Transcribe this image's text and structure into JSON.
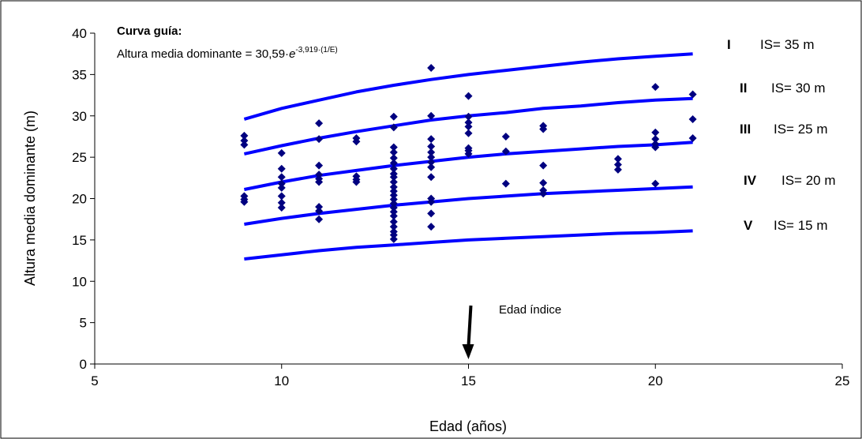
{
  "chart_data": {
    "type": "scatter",
    "xlabel": "Edad (años)",
    "ylabel": "Altura media dominante (m)",
    "xlim": [
      5,
      25
    ],
    "ylim": [
      0,
      40
    ],
    "x_ticks": [
      "5",
      "10",
      "15",
      "20",
      "25"
    ],
    "y_ticks": [
      "0",
      "5",
      "10",
      "15",
      "20",
      "25",
      "30",
      "35",
      "40"
    ],
    "guide_title": "Curva guía:",
    "guide_formula_base": "Altura media dominante = 30,59·",
    "guide_formula_e": "e",
    "guide_formula_exp": "-3,919·(1/E)",
    "index_age_label": "Edad índice",
    "index_age": 15,
    "grid": false,
    "point_color": "#000080",
    "curve_color": "#0000ff",
    "site_classes": [
      {
        "roman": "I",
        "label": "IS= 35 m",
        "x": [
          9,
          10,
          11,
          12,
          13,
          14,
          15,
          16,
          17,
          18,
          19,
          20,
          21
        ],
        "y": [
          29.6,
          30.9,
          31.9,
          32.9,
          33.7,
          34.4,
          35.0,
          35.5,
          36.0,
          36.5,
          36.9,
          37.2,
          37.5
        ]
      },
      {
        "roman": "II",
        "label": "IS= 30 m",
        "x": [
          9,
          10,
          11,
          12,
          13,
          14,
          15,
          16,
          17,
          18,
          19,
          20,
          21
        ],
        "y": [
          25.4,
          26.4,
          27.3,
          28.1,
          28.8,
          29.5,
          30.0,
          30.4,
          30.9,
          31.2,
          31.6,
          31.9,
          32.1
        ]
      },
      {
        "roman": "III",
        "label": "IS= 25 m",
        "x": [
          9,
          10,
          11,
          12,
          13,
          14,
          15,
          16,
          17,
          18,
          19,
          20,
          21
        ],
        "y": [
          21.1,
          22.0,
          22.8,
          23.4,
          24.0,
          24.5,
          25.0,
          25.4,
          25.7,
          26.0,
          26.3,
          26.5,
          26.8
        ]
      },
      {
        "roman": "IV",
        "label": "IS= 20 m",
        "x": [
          9,
          10,
          11,
          12,
          13,
          14,
          15,
          16,
          17,
          18,
          19,
          20,
          21
        ],
        "y": [
          16.9,
          17.6,
          18.2,
          18.7,
          19.2,
          19.6,
          20.0,
          20.3,
          20.6,
          20.8,
          21.0,
          21.2,
          21.4
        ]
      },
      {
        "roman": "V",
        "label": "IS= 15 m",
        "x": [
          9,
          10,
          11,
          12,
          13,
          14,
          15,
          16,
          17,
          18,
          19,
          20,
          21
        ],
        "y": [
          12.7,
          13.2,
          13.7,
          14.1,
          14.4,
          14.7,
          15.0,
          15.2,
          15.4,
          15.6,
          15.8,
          15.9,
          16.1
        ]
      }
    ],
    "points": [
      [
        9,
        27.6
      ],
      [
        9,
        27.0
      ],
      [
        9,
        26.5
      ],
      [
        9,
        20.3
      ],
      [
        9,
        19.9
      ],
      [
        9,
        19.6
      ],
      [
        10,
        25.5
      ],
      [
        10,
        23.6
      ],
      [
        10,
        22.6
      ],
      [
        10,
        21.8
      ],
      [
        10,
        21.3
      ],
      [
        10,
        20.3
      ],
      [
        10,
        19.5
      ],
      [
        10,
        18.9
      ],
      [
        11,
        29.1
      ],
      [
        11,
        27.2
      ],
      [
        11,
        24.0
      ],
      [
        11,
        22.9
      ],
      [
        11,
        22.4
      ],
      [
        11,
        22.0
      ],
      [
        11,
        19.0
      ],
      [
        11,
        18.5
      ],
      [
        11,
        17.5
      ],
      [
        12,
        27.3
      ],
      [
        12,
        26.9
      ],
      [
        12,
        22.7
      ],
      [
        12,
        22.3
      ],
      [
        12,
        22.0
      ],
      [
        13,
        29.9
      ],
      [
        13,
        28.6
      ],
      [
        13,
        26.2
      ],
      [
        13,
        25.6
      ],
      [
        13,
        24.9
      ],
      [
        13,
        24.3
      ],
      [
        13,
        23.6
      ],
      [
        13,
        23.0
      ],
      [
        13,
        22.6
      ],
      [
        13,
        22.0
      ],
      [
        13,
        21.4
      ],
      [
        13,
        20.9
      ],
      [
        13,
        20.4
      ],
      [
        13,
        19.9
      ],
      [
        13,
        19.4
      ],
      [
        13,
        18.9
      ],
      [
        13,
        18.4
      ],
      [
        13,
        17.9
      ],
      [
        13,
        17.2
      ],
      [
        13,
        16.6
      ],
      [
        13,
        16.0
      ],
      [
        13,
        15.6
      ],
      [
        13,
        15.1
      ],
      [
        14,
        35.8
      ],
      [
        14,
        30.0
      ],
      [
        14,
        27.2
      ],
      [
        14,
        26.3
      ],
      [
        14,
        25.6
      ],
      [
        14,
        25.0
      ],
      [
        14,
        24.4
      ],
      [
        14,
        23.8
      ],
      [
        14,
        22.6
      ],
      [
        14,
        20.0
      ],
      [
        14,
        19.6
      ],
      [
        14,
        18.2
      ],
      [
        14,
        16.6
      ],
      [
        15,
        32.4
      ],
      [
        15,
        29.9
      ],
      [
        15,
        29.2
      ],
      [
        15,
        28.7
      ],
      [
        15,
        27.9
      ],
      [
        15,
        26.1
      ],
      [
        15,
        25.8
      ],
      [
        15,
        25.4
      ],
      [
        16,
        27.5
      ],
      [
        16,
        25.7
      ],
      [
        16,
        21.8
      ],
      [
        17,
        28.8
      ],
      [
        17,
        28.4
      ],
      [
        17,
        24.0
      ],
      [
        17,
        21.9
      ],
      [
        17,
        21.0
      ],
      [
        17,
        20.6
      ],
      [
        19,
        24.8
      ],
      [
        19,
        24.1
      ],
      [
        19,
        23.5
      ],
      [
        20,
        33.5
      ],
      [
        20,
        28.0
      ],
      [
        20,
        27.2
      ],
      [
        20,
        26.6
      ],
      [
        20,
        26.2
      ],
      [
        20,
        21.8
      ],
      [
        21,
        32.6
      ],
      [
        21,
        29.6
      ],
      [
        21,
        27.3
      ]
    ]
  }
}
